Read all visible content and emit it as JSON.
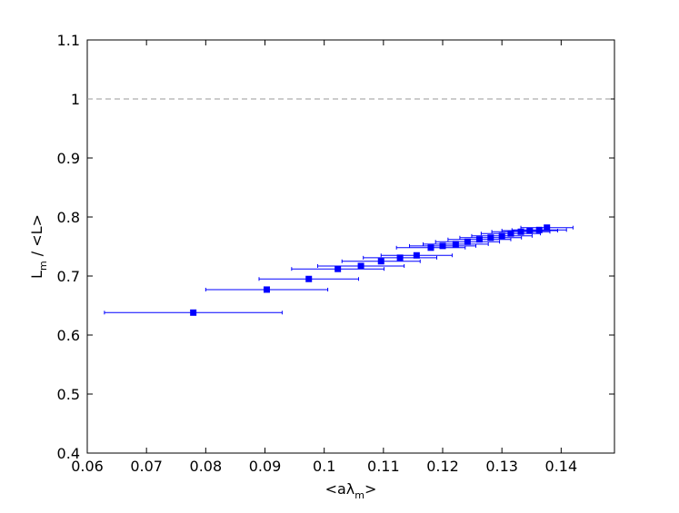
{
  "chart_data": {
    "type": "scatter",
    "xlabel": [
      "<aλ",
      "m",
      ">"
    ],
    "ylabel": [
      "L",
      "m",
      " / <L>"
    ],
    "xlim": [
      0.06,
      0.149
    ],
    "ylim": [
      0.4,
      1.1
    ],
    "xticks": [
      0.06,
      0.07,
      0.08,
      0.09,
      0.1,
      0.11,
      0.12,
      0.13,
      0.14
    ],
    "yticks": [
      0.4,
      0.5,
      0.6,
      0.7,
      0.8,
      0.9,
      1,
      1.1
    ],
    "hline": 1,
    "hline_color": "#999999",
    "series": [
      {
        "color": "#0000ff",
        "x": [
          0.0779,
          0.0903,
          0.0974,
          0.1023,
          0.1062,
          0.1096,
          0.1128,
          0.1156,
          0.118,
          0.12,
          0.1222,
          0.1242,
          0.1262,
          0.1281,
          0.13,
          0.1315,
          0.1332,
          0.1347,
          0.1363,
          0.1376
        ],
        "values": [
          0.638,
          0.677,
          0.695,
          0.712,
          0.717,
          0.725,
          0.731,
          0.735,
          0.748,
          0.751,
          0.754,
          0.758,
          0.762,
          0.765,
          0.768,
          0.772,
          0.775,
          0.777,
          0.778,
          0.782
        ],
        "xerr": [
          0.015,
          0.0103,
          0.0084,
          0.0078,
          0.0073,
          0.0066,
          0.0062,
          0.006,
          0.0058,
          0.0056,
          0.0055,
          0.0054,
          0.0053,
          0.0052,
          0.0051,
          0.005,
          0.0049,
          0.0047,
          0.0046,
          0.0044
        ]
      }
    ]
  }
}
